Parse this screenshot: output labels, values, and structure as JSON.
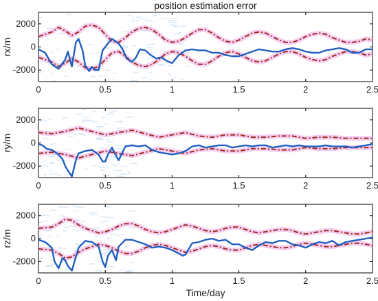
{
  "colors": {
    "estimate_error": "#1f5fbf",
    "bound": "#a0281a",
    "bound_halo": "#f3c2ee",
    "noise": "#c3dcf2",
    "axes": "#000000"
  },
  "chart_data": [
    {
      "type": "line",
      "title": "position estimation error",
      "xlabel": "",
      "ylabel": "rx/m",
      "xlim": [
        0,
        2.5
      ],
      "ylim": [
        -3000,
        3000
      ],
      "xticks": [
        0,
        0.5,
        1,
        1.5,
        2,
        2.5
      ],
      "xtick_labels": [
        "0",
        "0.5",
        "1",
        "1.5",
        "2",
        "2.5"
      ],
      "yticks": [
        -2000,
        0,
        2000
      ],
      "ytick_labels": [
        "-2000",
        "0",
        "2000"
      ],
      "grid": false,
      "series": [
        {
          "x": [
            0,
            0.05,
            0.1,
            0.15,
            0.2,
            0.22,
            0.25,
            0.28,
            0.3,
            0.33,
            0.35,
            0.38,
            0.4,
            0.42,
            0.45,
            0.48,
            0.5,
            0.52,
            0.55,
            0.6,
            0.63,
            0.66,
            0.7,
            0.73,
            0.76,
            0.8,
            0.84,
            0.88,
            0.92,
            0.96,
            1,
            1.05,
            1.1,
            1.15,
            1.2,
            1.25,
            1.3,
            1.35,
            1.4,
            1.45,
            1.5,
            1.55,
            1.6,
            1.65,
            1.7,
            1.75,
            1.8,
            1.85,
            1.9,
            1.95,
            2,
            2.05,
            2.1,
            2.15,
            2.2,
            2.25,
            2.3,
            2.35,
            2.4,
            2.45,
            2.5
          ],
          "y": [
            -200,
            -500,
            -1500,
            -1900,
            -1100,
            -400,
            -1700,
            400,
            700,
            -300,
            -1600,
            -2100,
            -1700,
            -2000,
            -2000,
            -300,
            0,
            300,
            700,
            300,
            -200,
            -1000,
            -1300,
            -900,
            -200,
            -300,
            -700,
            -1000,
            -900,
            -1200,
            -1400,
            -700,
            -300,
            -200,
            -300,
            -300,
            -500,
            -500,
            -700,
            -800,
            -800,
            -600,
            -400,
            -200,
            -300,
            -400,
            -400,
            -200,
            -100,
            -200,
            -400,
            -500,
            -500,
            -300,
            -200,
            -100,
            -200,
            -500,
            -500,
            -200,
            -200
          ]
        },
        {
          "x": [
            0,
            0.05,
            0.1,
            0.15,
            0.2,
            0.25,
            0.3,
            0.35,
            0.4,
            0.45,
            0.5,
            0.55,
            0.6,
            0.65,
            0.7,
            0.75,
            0.8,
            0.85,
            0.9,
            0.95,
            1,
            1.05,
            1.1,
            1.15,
            1.2,
            1.25,
            1.3,
            1.35,
            1.4,
            1.45,
            1.5,
            1.55,
            1.6,
            1.65,
            1.7,
            1.75,
            1.8,
            1.85,
            1.9,
            1.95,
            2,
            2.05,
            2.1,
            2.15,
            2.2,
            2.25,
            2.3,
            2.35,
            2.4,
            2.45,
            2.5
          ],
          "y": [
            900,
            1100,
            1300,
            1700,
            1400,
            1000,
            1300,
            1800,
            1900,
            1700,
            1100,
            500,
            400,
            800,
            1300,
            1600,
            1700,
            1500,
            1100,
            600,
            400,
            500,
            800,
            1200,
            1500,
            1500,
            1200,
            800,
            500,
            400,
            600,
            900,
            1200,
            1300,
            1200,
            900,
            600,
            400,
            400,
            600,
            900,
            1100,
            1200,
            1100,
            800,
            600,
            400,
            400,
            500,
            700,
            600
          ]
        },
        {
          "x": [
            0,
            0.05,
            0.1,
            0.15,
            0.2,
            0.25,
            0.3,
            0.35,
            0.4,
            0.45,
            0.5,
            0.55,
            0.6,
            0.65,
            0.7,
            0.75,
            0.8,
            0.85,
            0.9,
            0.95,
            1,
            1.05,
            1.1,
            1.15,
            1.2,
            1.25,
            1.3,
            1.35,
            1.4,
            1.45,
            1.5,
            1.55,
            1.6,
            1.65,
            1.7,
            1.75,
            1.8,
            1.85,
            1.9,
            1.95,
            2,
            2.05,
            2.1,
            2.15,
            2.2,
            2.25,
            2.3,
            2.35,
            2.4,
            2.45,
            2.5
          ],
          "y": [
            -900,
            -1100,
            -1300,
            -1700,
            -1400,
            -1000,
            -1300,
            -1800,
            -1900,
            -1700,
            -1100,
            -500,
            -400,
            -800,
            -1300,
            -1600,
            -1700,
            -1500,
            -1100,
            -600,
            -400,
            -500,
            -800,
            -1200,
            -1500,
            -1500,
            -1200,
            -800,
            -500,
            -400,
            -600,
            -900,
            -1200,
            -1300,
            -1200,
            -900,
            -600,
            -400,
            -400,
            -600,
            -900,
            -1100,
            -1200,
            -1100,
            -800,
            -600,
            -400,
            -400,
            -500,
            -700,
            -600
          ]
        }
      ]
    },
    {
      "type": "line",
      "title": "",
      "xlabel": "",
      "ylabel": "ry/m",
      "xlim": [
        0,
        2.5
      ],
      "ylim": [
        -3000,
        3000
      ],
      "xticks": [
        0,
        0.5,
        1,
        1.5,
        2,
        2.5
      ],
      "xtick_labels": [
        "0",
        "0.5",
        "1",
        "1.5",
        "2",
        "2.5"
      ],
      "yticks": [
        -2000,
        0,
        2000
      ],
      "ytick_labels": [
        "-2000",
        "0",
        "2000"
      ],
      "grid": false,
      "series": [
        {
          "x": [
            0,
            0.03,
            0.06,
            0.1,
            0.14,
            0.18,
            0.2,
            0.22,
            0.25,
            0.28,
            0.3,
            0.35,
            0.4,
            0.45,
            0.48,
            0.5,
            0.52,
            0.55,
            0.58,
            0.6,
            0.65,
            0.7,
            0.75,
            0.8,
            0.85,
            0.9,
            0.95,
            1,
            1.05,
            1.1,
            1.15,
            1.2,
            1.25,
            1.3,
            1.35,
            1.4,
            1.45,
            1.5,
            1.55,
            1.6,
            1.65,
            1.7,
            1.75,
            1.8,
            1.85,
            1.9,
            1.95,
            2,
            2.05,
            2.1,
            2.15,
            2.2,
            2.25,
            2.3,
            2.35,
            2.4,
            2.45,
            2.5
          ],
          "y": [
            -100,
            -200,
            -500,
            -600,
            -900,
            -1400,
            -2000,
            -2400,
            -2900,
            -1500,
            -900,
            -700,
            -600,
            -1000,
            -1600,
            -1600,
            -1000,
            -400,
            -1100,
            -1500,
            -300,
            -200,
            -300,
            -200,
            -600,
            -800,
            -900,
            -1000,
            -900,
            -700,
            -300,
            -200,
            -400,
            -300,
            -200,
            -200,
            -400,
            -300,
            -200,
            -300,
            -200,
            -200,
            -400,
            -300,
            -200,
            -300,
            -200,
            -300,
            -300,
            -300,
            -200,
            -300,
            -300,
            -300,
            -400,
            -300,
            -200,
            -100
          ]
        },
        {
          "x": [
            0,
            0.1,
            0.2,
            0.3,
            0.4,
            0.5,
            0.6,
            0.7,
            0.8,
            0.9,
            1,
            1.1,
            1.2,
            1.3,
            1.4,
            1.5,
            1.6,
            1.7,
            1.8,
            1.9,
            2,
            2.1,
            2.2,
            2.3,
            2.4,
            2.5
          ],
          "y": [
            900,
            800,
            1000,
            1300,
            1000,
            700,
            900,
            1100,
            800,
            500,
            700,
            900,
            600,
            500,
            700,
            700,
            500,
            500,
            600,
            600,
            400,
            500,
            500,
            400,
            400,
            400
          ]
        },
        {
          "x": [
            0,
            0.1,
            0.2,
            0.3,
            0.4,
            0.5,
            0.6,
            0.7,
            0.8,
            0.9,
            1,
            1.1,
            1.2,
            1.3,
            1.4,
            1.5,
            1.6,
            1.7,
            1.8,
            1.9,
            2,
            2.1,
            2.2,
            2.3,
            2.4,
            2.5
          ],
          "y": [
            -900,
            -800,
            -1000,
            -1300,
            -1000,
            -700,
            -900,
            -1100,
            -800,
            -500,
            -700,
            -900,
            -600,
            -500,
            -700,
            -700,
            -500,
            -500,
            -600,
            -600,
            -400,
            -500,
            -500,
            -400,
            -400,
            -400
          ]
        }
      ]
    },
    {
      "type": "line",
      "title": "",
      "xlabel": "Time/day",
      "ylabel": "rz/m",
      "xlim": [
        0,
        2.5
      ],
      "ylim": [
        -3000,
        3000
      ],
      "xticks": [
        0,
        0.5,
        1,
        1.5,
        2,
        2.5
      ],
      "xtick_labels": [
        "0",
        "0.5",
        "1",
        "1.5",
        "2",
        "2.5"
      ],
      "yticks": [
        -2000,
        0,
        2000
      ],
      "ytick_labels": [
        "-2000",
        "0",
        "2000"
      ],
      "grid": false,
      "series": [
        {
          "x": [
            0,
            0.05,
            0.1,
            0.12,
            0.15,
            0.18,
            0.2,
            0.22,
            0.25,
            0.3,
            0.35,
            0.4,
            0.45,
            0.48,
            0.5,
            0.52,
            0.55,
            0.58,
            0.6,
            0.65,
            0.7,
            0.75,
            0.8,
            0.85,
            0.9,
            0.95,
            1,
            1.05,
            1.08,
            1.1,
            1.15,
            1.2,
            1.25,
            1.3,
            1.35,
            1.4,
            1.45,
            1.5,
            1.55,
            1.6,
            1.65,
            1.7,
            1.75,
            1.8,
            1.85,
            1.9,
            1.95,
            2,
            2.05,
            2.1,
            2.15,
            2.2,
            2.25,
            2.3,
            2.35,
            2.4,
            2.45,
            2.5
          ],
          "y": [
            -100,
            -300,
            -800,
            -2000,
            -2600,
            -1700,
            -1900,
            -2400,
            -2800,
            -800,
            -200,
            -300,
            -700,
            -2000,
            -2500,
            -1500,
            -1000,
            -1900,
            -700,
            -100,
            -100,
            -300,
            -500,
            -800,
            -700,
            -800,
            -1000,
            -1300,
            -1500,
            -1400,
            -400,
            -300,
            -100,
            0,
            -200,
            -100,
            -500,
            -500,
            -800,
            -1000,
            -600,
            -300,
            -400,
            -200,
            -200,
            -500,
            -600,
            -800,
            -500,
            -300,
            -400,
            -200,
            -600,
            -300,
            -200,
            -100,
            0,
            100
          ]
        },
        {
          "x": [
            0,
            0.1,
            0.15,
            0.2,
            0.25,
            0.3,
            0.35,
            0.4,
            0.45,
            0.5,
            0.55,
            0.6,
            0.65,
            0.7,
            0.75,
            0.8,
            0.85,
            0.9,
            0.95,
            1,
            1.05,
            1.1,
            1.15,
            1.2,
            1.25,
            1.3,
            1.35,
            1.4,
            1.45,
            1.5,
            1.55,
            1.6,
            1.65,
            1.7,
            1.75,
            1.8,
            1.85,
            1.9,
            1.95,
            2,
            2.05,
            2.1,
            2.15,
            2.2,
            2.25,
            2.3,
            2.35,
            2.4,
            2.45,
            2.5
          ],
          "y": [
            900,
            1000,
            1300,
            1700,
            1600,
            1200,
            900,
            700,
            500,
            600,
            800,
            1100,
            1300,
            1300,
            1100,
            800,
            600,
            500,
            600,
            800,
            1000,
            1200,
            1100,
            900,
            700,
            600,
            700,
            900,
            1000,
            1000,
            800,
            600,
            500,
            600,
            700,
            800,
            800,
            700,
            500,
            400,
            500,
            600,
            700,
            700,
            600,
            500,
            400,
            400,
            500,
            600
          ]
        },
        {
          "x": [
            0,
            0.1,
            0.15,
            0.2,
            0.25,
            0.3,
            0.35,
            0.4,
            0.45,
            0.5,
            0.55,
            0.6,
            0.65,
            0.7,
            0.75,
            0.8,
            0.85,
            0.9,
            0.95,
            1,
            1.05,
            1.1,
            1.15,
            1.2,
            1.25,
            1.3,
            1.35,
            1.4,
            1.45,
            1.5,
            1.55,
            1.6,
            1.65,
            1.7,
            1.75,
            1.8,
            1.85,
            1.9,
            1.95,
            2,
            2.05,
            2.1,
            2.15,
            2.2,
            2.25,
            2.3,
            2.35,
            2.4,
            2.45,
            2.5
          ],
          "y": [
            -900,
            -1000,
            -1300,
            -1700,
            -1600,
            -1200,
            -900,
            -700,
            -500,
            -600,
            -800,
            -1100,
            -1300,
            -1300,
            -1100,
            -800,
            -600,
            -500,
            -600,
            -800,
            -1000,
            -1200,
            -1100,
            -900,
            -700,
            -600,
            -700,
            -900,
            -1000,
            -1000,
            -800,
            -600,
            -500,
            -600,
            -700,
            -800,
            -800,
            -700,
            -500,
            -400,
            -500,
            -600,
            -700,
            -700,
            -600,
            -500,
            -400,
            -400,
            -500,
            -600
          ]
        }
      ]
    }
  ]
}
